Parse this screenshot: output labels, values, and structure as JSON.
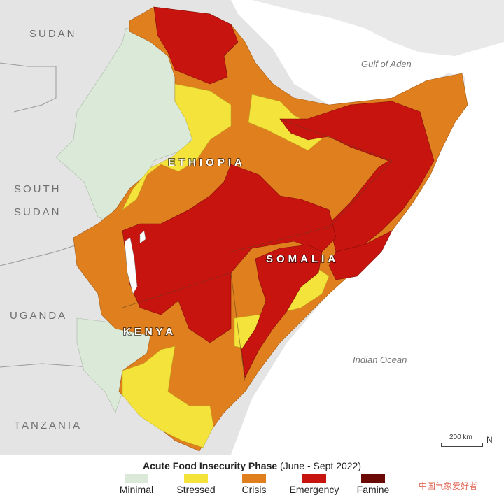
{
  "map": {
    "countries": {
      "sudan": "SUDAN",
      "south_sudan_line1": "SOUTH",
      "south_sudan_line2": "SUDAN",
      "uganda": "UGANDA",
      "tanzania": "TANZANIA",
      "ethiopia": "ETHIOPIA",
      "somalia": "SOMALIA",
      "kenya": "KENYA"
    },
    "water": {
      "gulf_of_aden": "Gulf of Aden",
      "indian_ocean": "Indian Ocean"
    },
    "scale_label": "200 km",
    "north_label": "N"
  },
  "legend": {
    "title_bold": "Acute Food Insecurity Phase",
    "title_rest": " (June - Sept 2022)",
    "items": [
      {
        "label": "Minimal",
        "color": "#dbe9d8"
      },
      {
        "label": "Stressed",
        "color": "#f3e33a"
      },
      {
        "label": "Crisis",
        "color": "#df7f1e"
      },
      {
        "label": "Emergency",
        "color": "#c8140f"
      },
      {
        "label": "Famine",
        "color": "#6a0906"
      }
    ]
  },
  "watermark": "中国气象爱好者"
}
